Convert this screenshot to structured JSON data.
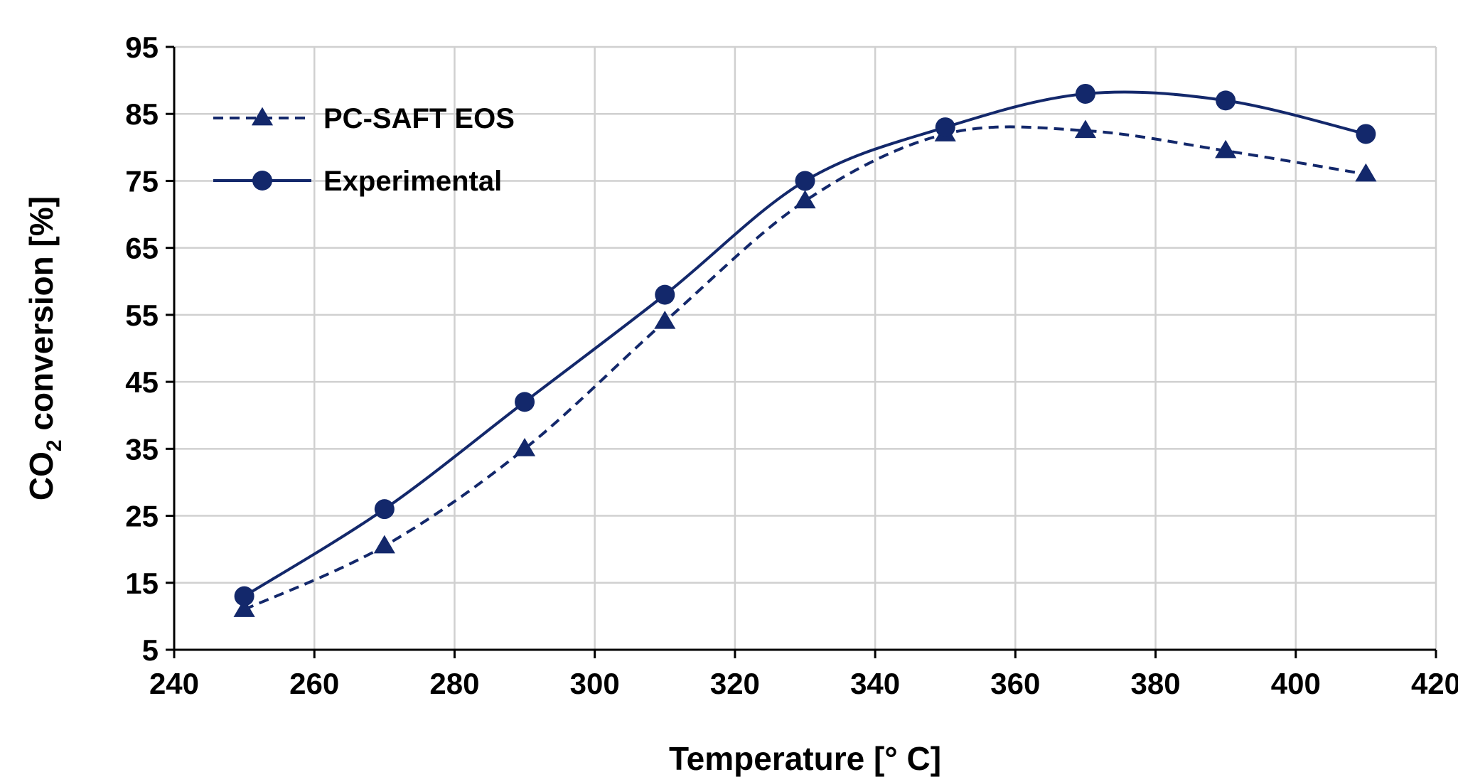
{
  "chart_data": {
    "type": "line",
    "title": "",
    "xlabel": "Temperature [° C]",
    "ylabel_main": "CO",
    "ylabel_sub": "2",
    "ylabel_rest": " conversion [%]",
    "xlim": [
      240,
      420
    ],
    "ylim": [
      5,
      95
    ],
    "xticks": [
      240,
      260,
      280,
      300,
      320,
      340,
      360,
      380,
      400,
      420
    ],
    "yticks": [
      5,
      15,
      25,
      35,
      45,
      55,
      65,
      75,
      85,
      95
    ],
    "grid": true,
    "legend_position": "top-left",
    "x": [
      250,
      270,
      290,
      310,
      330,
      350,
      370,
      390,
      410
    ],
    "series": [
      {
        "name": "PC-SAFT EOS",
        "style": "dashed",
        "marker": "triangle",
        "color": "#13286b",
        "values": [
          11,
          20.5,
          35,
          54,
          72,
          82,
          82.5,
          79.5,
          76
        ]
      },
      {
        "name": "Experimental",
        "style": "solid",
        "marker": "circle",
        "color": "#13286b",
        "values": [
          13,
          26,
          42,
          58,
          75,
          83,
          88,
          87,
          82
        ]
      }
    ]
  }
}
